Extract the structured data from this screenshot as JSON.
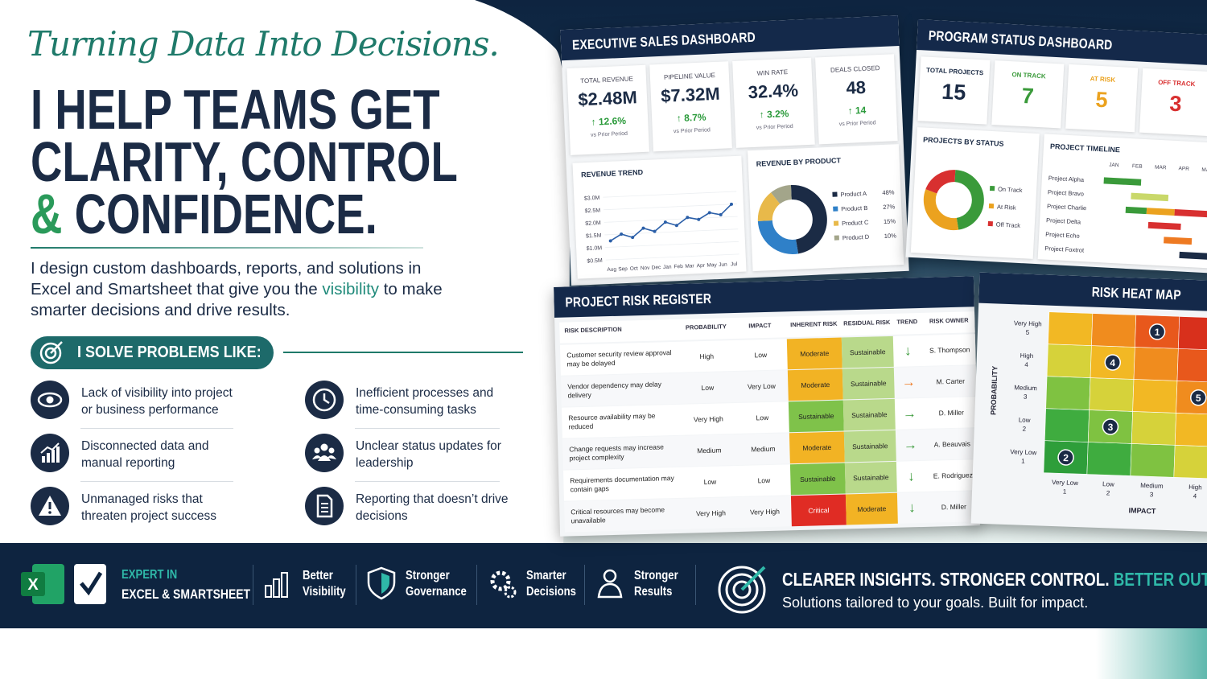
{
  "hero": {
    "tagline": "Turning Data Into Decisions.",
    "headline": {
      "line1": "I HELP TEAMS GET",
      "line2": "CLARITY, CONTROL",
      "amp": "&",
      "line3": "CONFIDENCE."
    },
    "intro": {
      "before": "I design custom dashboards, reports, and solutions in Excel and Smartsheet that give you the",
      "highlight": "visibility",
      "after": "to make smarter decisions and drive results."
    },
    "problems_heading": "I SOLVE PROBLEMS LIKE:",
    "problems": [
      "Lack of visibility into project or business performance",
      "Inefficient processes and time-consuming tasks",
      "Disconnected data and manual reporting",
      "Unclear status updates for leadership",
      "Unmanaged risks that threaten project success",
      "Reporting that doesn’t drive decisions"
    ]
  },
  "exec_dashboard": {
    "title": "EXECUTIVE SALES DASHBOARD",
    "kpis": [
      {
        "label": "TOTAL REVENUE",
        "value": "$2.48M",
        "change": "↑ 12.6%",
        "note": "vs Prior Period"
      },
      {
        "label": "PIPELINE VALUE",
        "value": "$7.32M",
        "change": "↑ 8.7%",
        "note": "vs Prior Period"
      },
      {
        "label": "WIN RATE",
        "value": "32.4%",
        "change": "↑ 3.2%",
        "note": "vs Prior Period"
      },
      {
        "label": "DEALS CLOSED",
        "value": "48",
        "change": "↑ 14",
        "note": "vs Prior Period"
      }
    ],
    "revenue_trend": {
      "title": "REVENUE TREND",
      "categories": [
        "Aug",
        "Sep",
        "Oct",
        "Nov",
        "Dec",
        "Jan",
        "Feb",
        "Mar",
        "Apr",
        "May",
        "Jun",
        "Jul"
      ],
      "values": [
        1.25,
        1.5,
        1.35,
        1.7,
        1.55,
        1.9,
        1.75,
        2.05,
        1.95,
        2.2,
        2.1,
        2.5
      ],
      "color": "#2b5fa8",
      "ylim": [
        0.5,
        3.0
      ],
      "yticks": [
        {
          "value": 0.5,
          "label": "$0.5M"
        },
        {
          "value": 1.0,
          "label": "$1.0M"
        },
        {
          "value": 1.5,
          "label": "$1.5M"
        },
        {
          "value": 2.0,
          "label": "$2.0M"
        },
        {
          "value": 2.5,
          "label": "$2.5M"
        },
        {
          "value": 3.0,
          "label": "$3.0M"
        }
      ]
    },
    "revenue_by_product": {
      "title": "REVENUE BY PRODUCT",
      "categories": [
        "Product A",
        "Product B",
        "Product C",
        "Product D"
      ],
      "values": [
        48,
        27,
        15,
        10
      ],
      "value_labels": [
        "48%",
        "27%",
        "15%",
        "10%"
      ],
      "colors": [
        "#1b2b45",
        "#2f80c8",
        "#e8b94a",
        "#a3a58a"
      ]
    }
  },
  "program_dashboard": {
    "title": "PROGRAM STATUS DASHBOARD",
    "kpis": [
      {
        "label": "TOTAL PROJECTS",
        "value": 15,
        "color": "#1b2b45"
      },
      {
        "label": "ON TRACK",
        "value": 7,
        "color": "#3a9a3a"
      },
      {
        "label": "AT RISK",
        "value": 5,
        "color": "#eba21f"
      },
      {
        "label": "OFF TRACK",
        "value": 3,
        "color": "#d83030"
      }
    ],
    "status_chart": {
      "title": "PROJECTS BY STATUS",
      "legend": [
        "On Track",
        "At Risk",
        "Off Track"
      ]
    },
    "timeline": {
      "title": "PROJECT TIMELINE",
      "months": [
        "JAN",
        "FEB",
        "MAR",
        "APR",
        "MAY"
      ],
      "projects": [
        {
          "name": "Project Alpha",
          "bars": [
            {
              "start": 0.1,
              "end": 1.7,
              "color": "#3a9a3a"
            }
          ]
        },
        {
          "name": "Project Bravo",
          "bars": [
            {
              "start": 1.3,
              "end": 2.9,
              "color": "#c9d86a"
            }
          ]
        },
        {
          "name": "Project Charlie",
          "bars": [
            {
              "start": 1.1,
              "end": 2.0,
              "color": "#3a9a3a"
            },
            {
              "start": 2.0,
              "end": 3.2,
              "color": "#eba21f"
            },
            {
              "start": 3.2,
              "end": 4.6,
              "color": "#d83030"
            }
          ]
        },
        {
          "name": "Project Delta",
          "bars": [
            {
              "start": 2.1,
              "end": 3.5,
              "color": "#d83030"
            }
          ]
        },
        {
          "name": "Project Echo",
          "bars": [
            {
              "start": 2.8,
              "end": 4.0,
              "color": "#ee7a22"
            }
          ]
        },
        {
          "name": "Project Foxtrot",
          "bars": [
            {
              "start": 3.5,
              "end": 4.9,
              "color": "#1b2b45"
            }
          ]
        }
      ]
    }
  },
  "risk_register": {
    "title": "PROJECT RISK REGISTER",
    "columns": [
      "RISK DESCRIPTION",
      "PROBABILITY",
      "IMPACT",
      "INHERENT RISK",
      "RESIDUAL RISK",
      "TREND",
      "RISK OWNER"
    ],
    "rows": [
      {
        "description": "Customer security review approval may be delayed",
        "probability": "High",
        "impact": "Low",
        "inherent": "Moderate",
        "inherent_color": "#f2b324",
        "residual": "Sustainable",
        "residual_color": "#b9d98b",
        "trend": "↓",
        "trend_color": "#3a9a3a",
        "owner": "S. Thompson"
      },
      {
        "description": "Vendor dependency may delay delivery",
        "probability": "Low",
        "impact": "Very Low",
        "inherent": "Moderate",
        "inherent_color": "#f2b324",
        "residual": "Sustainable",
        "residual_color": "#b9d98b",
        "trend": "→",
        "trend_color": "#ee7a22",
        "owner": "M. Carter"
      },
      {
        "description": "Resource availability may be reduced",
        "probability": "Very High",
        "impact": "Low",
        "inherent": "Sustainable",
        "inherent_color": "#7fc24a",
        "residual": "Sustainable",
        "residual_color": "#b9d98b",
        "trend": "→",
        "trend_color": "#3a9a3a",
        "owner": "D. Miller"
      },
      {
        "description": "Change requests may increase project complexity",
        "probability": "Medium",
        "impact": "Medium",
        "inherent": "Moderate",
        "inherent_color": "#f2b324",
        "residual": "Sustainable",
        "residual_color": "#b9d98b",
        "trend": "→",
        "trend_color": "#3a9a3a",
        "owner": "A. Beauvais"
      },
      {
        "description": "Requirements documentation may contain gaps",
        "probability": "Low",
        "impact": "Low",
        "inherent": "Sustainable",
        "inherent_color": "#7fc24a",
        "residual": "Sustainable",
        "residual_color": "#b9d98b",
        "trend": "↓",
        "trend_color": "#3a9a3a",
        "owner": "E. Rodriguez"
      },
      {
        "description": "Critical resources may become unavailable",
        "probability": "Very High",
        "impact": "Very High",
        "inherent": "Critical",
        "inherent_color": "#e02c24",
        "residual": "Moderate",
        "residual_color": "#f2b324",
        "trend": "↓",
        "trend_color": "#3a9a3a",
        "owner": "D. Miller"
      }
    ]
  },
  "heat_map": {
    "title": "RISK HEAT MAP",
    "y_title": "PROBABILITY",
    "x_title": "IMPACT",
    "y_levels": [
      {
        "label": "Very High",
        "value": 5
      },
      {
        "label": "High",
        "value": 4
      },
      {
        "label": "Medium",
        "value": 3
      },
      {
        "label": "Low",
        "value": 2
      },
      {
        "label": "Very Low",
        "value": 1
      }
    ],
    "x_levels": [
      {
        "label": "Very Low",
        "value": 1
      },
      {
        "label": "Low",
        "value": 2
      },
      {
        "label": "Medium",
        "value": 3
      },
      {
        "label": "High",
        "value": 4
      }
    ],
    "risks": [
      {
        "label": "1",
        "impact": 3,
        "probability": 5
      },
      {
        "label": "4",
        "impact": 2,
        "probability": 4
      },
      {
        "label": "3",
        "impact": 2,
        "probability": 2
      },
      {
        "label": "2",
        "impact": 1,
        "probability": 1
      },
      {
        "label": "5",
        "impact": 4,
        "probability": 3
      }
    ]
  },
  "footer": {
    "excel_icon": "X",
    "expert": {
      "line1": "EXPERT IN",
      "line2": "EXCEL & SMARTSHEET"
    },
    "items": [
      [
        "Better",
        "Visibility"
      ],
      [
        "Stronger",
        "Governance"
      ],
      [
        "Smarter",
        "Decisions"
      ],
      [
        "Stronger",
        "Results"
      ]
    ],
    "tagline": {
      "part1": "CLEARER INSIGHTS.",
      "part2": "STRONGER CONTROL.",
      "part3": "BETTER OUTCOMES."
    },
    "sub": "Solutions tailored to your goals. Built for impact."
  }
}
